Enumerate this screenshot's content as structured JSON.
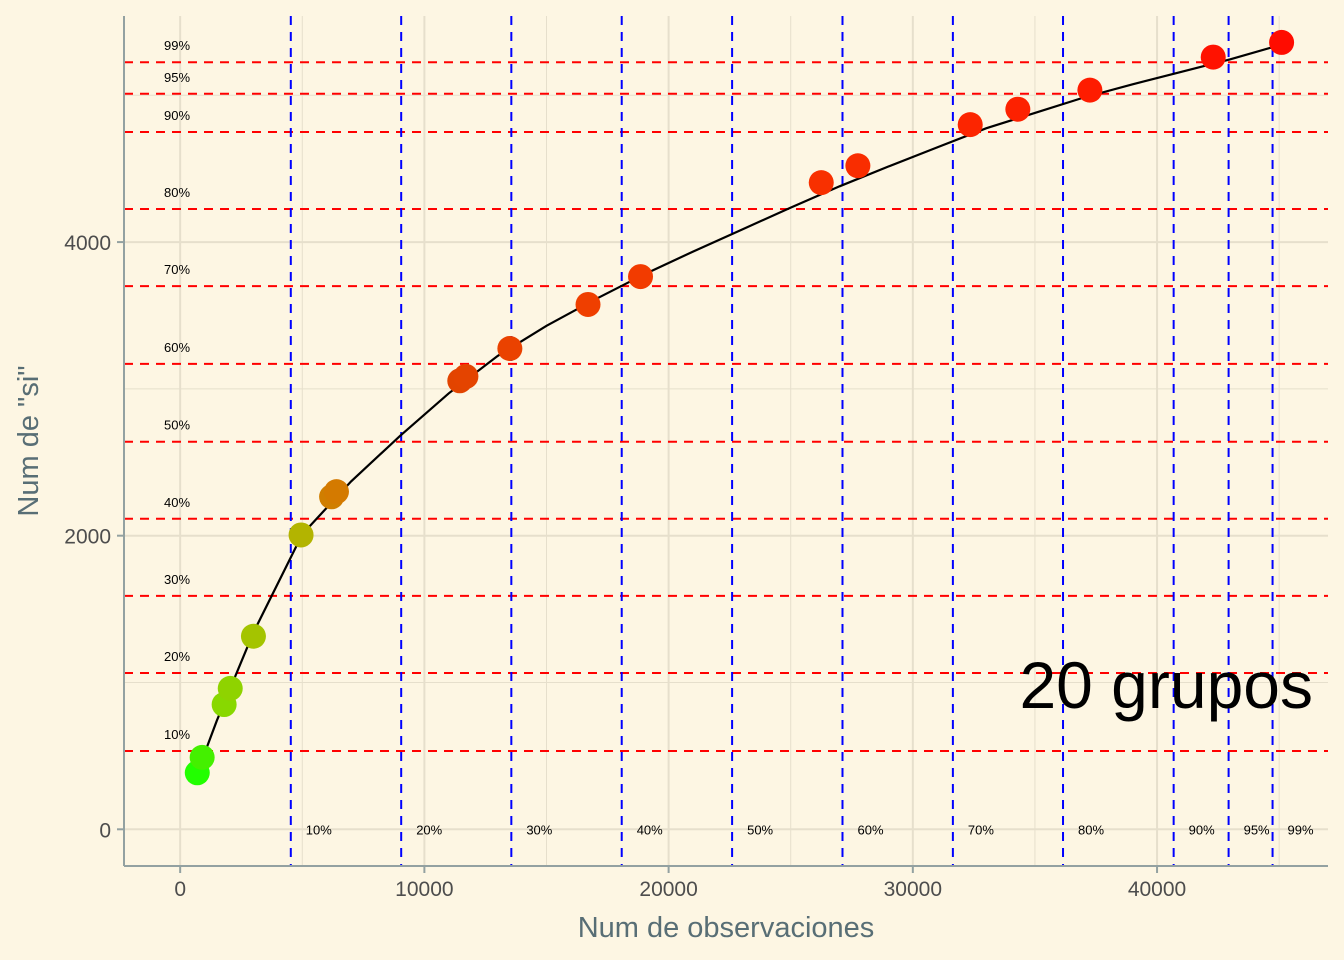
{
  "chart_data": {
    "type": "scatter",
    "xlabel": "Num de observaciones",
    "ylabel": "Num de \"si\"",
    "xlim": [
      -2300,
      47000
    ],
    "ylim": [
      -250,
      5540
    ],
    "x_ticks": [
      0,
      10000,
      20000,
      30000,
      40000
    ],
    "y_ticks": [
      0,
      2000,
      4000
    ],
    "annotation": "20 grupos",
    "points": [
      {
        "x": 700,
        "y": 385,
        "color": "#22ff00"
      },
      {
        "x": 900,
        "y": 490,
        "color": "#44f000"
      },
      {
        "x": 1800,
        "y": 850,
        "color": "#88d800"
      },
      {
        "x": 2050,
        "y": 960,
        "color": "#8fd300"
      },
      {
        "x": 3000,
        "y": 1315,
        "color": "#a4c400"
      },
      {
        "x": 4950,
        "y": 2005,
        "color": "#b3b400"
      },
      {
        "x": 6200,
        "y": 2265,
        "color": "#d07e00"
      },
      {
        "x": 6400,
        "y": 2300,
        "color": "#d47a00"
      },
      {
        "x": 11450,
        "y": 3055,
        "color": "#e24400"
      },
      {
        "x": 11700,
        "y": 3085,
        "color": "#e44400"
      },
      {
        "x": 13500,
        "y": 3275,
        "color": "#ea4200"
      },
      {
        "x": 16700,
        "y": 3575,
        "color": "#ef3f00"
      },
      {
        "x": 18850,
        "y": 3765,
        "color": "#f23b00"
      },
      {
        "x": 26250,
        "y": 4405,
        "color": "#f83000"
      },
      {
        "x": 27750,
        "y": 4520,
        "color": "#f92d00"
      },
      {
        "x": 32350,
        "y": 4800,
        "color": "#fc2500"
      },
      {
        "x": 34300,
        "y": 4905,
        "color": "#fd2100"
      },
      {
        "x": 37250,
        "y": 5035,
        "color": "#fe1c00"
      },
      {
        "x": 42300,
        "y": 5260,
        "color": "#ff1200"
      },
      {
        "x": 45100,
        "y": 5360,
        "color": "#ff0c00"
      }
    ],
    "curve": [
      [
        700,
        385
      ],
      [
        1500,
        740
      ],
      [
        3000,
        1340
      ],
      [
        5000,
        2010
      ],
      [
        7000,
        2370
      ],
      [
        9000,
        2680
      ],
      [
        11000,
        2970
      ],
      [
        13000,
        3225
      ],
      [
        15000,
        3430
      ],
      [
        17000,
        3610
      ],
      [
        19000,
        3780
      ],
      [
        21000,
        3935
      ],
      [
        23000,
        4085
      ],
      [
        25000,
        4235
      ],
      [
        27000,
        4380
      ],
      [
        29000,
        4515
      ],
      [
        31000,
        4645
      ],
      [
        33000,
        4775
      ],
      [
        35000,
        4880
      ],
      [
        37000,
        4985
      ],
      [
        39000,
        5075
      ],
      [
        41000,
        5160
      ],
      [
        43000,
        5245
      ],
      [
        45100,
        5345
      ]
    ],
    "h_lines": [
      {
        "y": 533,
        "label": "10%"
      },
      {
        "y": 1065,
        "label": "20%"
      },
      {
        "y": 1590,
        "label": "30%"
      },
      {
        "y": 2115,
        "label": "40%"
      },
      {
        "y": 2640,
        "label": "50%"
      },
      {
        "y": 3170,
        "label": "60%"
      },
      {
        "y": 3700,
        "label": "70%"
      },
      {
        "y": 4225,
        "label": "80%"
      },
      {
        "y": 4750,
        "label": "90%"
      },
      {
        "y": 5010,
        "label": "95%"
      },
      {
        "y": 5225,
        "label": "99%"
      }
    ],
    "v_lines": [
      {
        "x": 4530,
        "label": "10%"
      },
      {
        "x": 9050,
        "label": "20%"
      },
      {
        "x": 13560,
        "label": "30%"
      },
      {
        "x": 18080,
        "label": "40%"
      },
      {
        "x": 22600,
        "label": "50%"
      },
      {
        "x": 27120,
        "label": "60%"
      },
      {
        "x": 31640,
        "label": "70%"
      },
      {
        "x": 36150,
        "label": "80%"
      },
      {
        "x": 40680,
        "label": "90%"
      },
      {
        "x": 42930,
        "label": "95%"
      },
      {
        "x": 44730,
        "label": "99%"
      }
    ],
    "grid": true,
    "colors": {
      "background": "#fdf6e3",
      "grid": "#e6dfcc",
      "axis": "#93a1a1",
      "h_lines": "#ff0000",
      "v_lines": "#0000ff",
      "curve": "#000000"
    }
  }
}
